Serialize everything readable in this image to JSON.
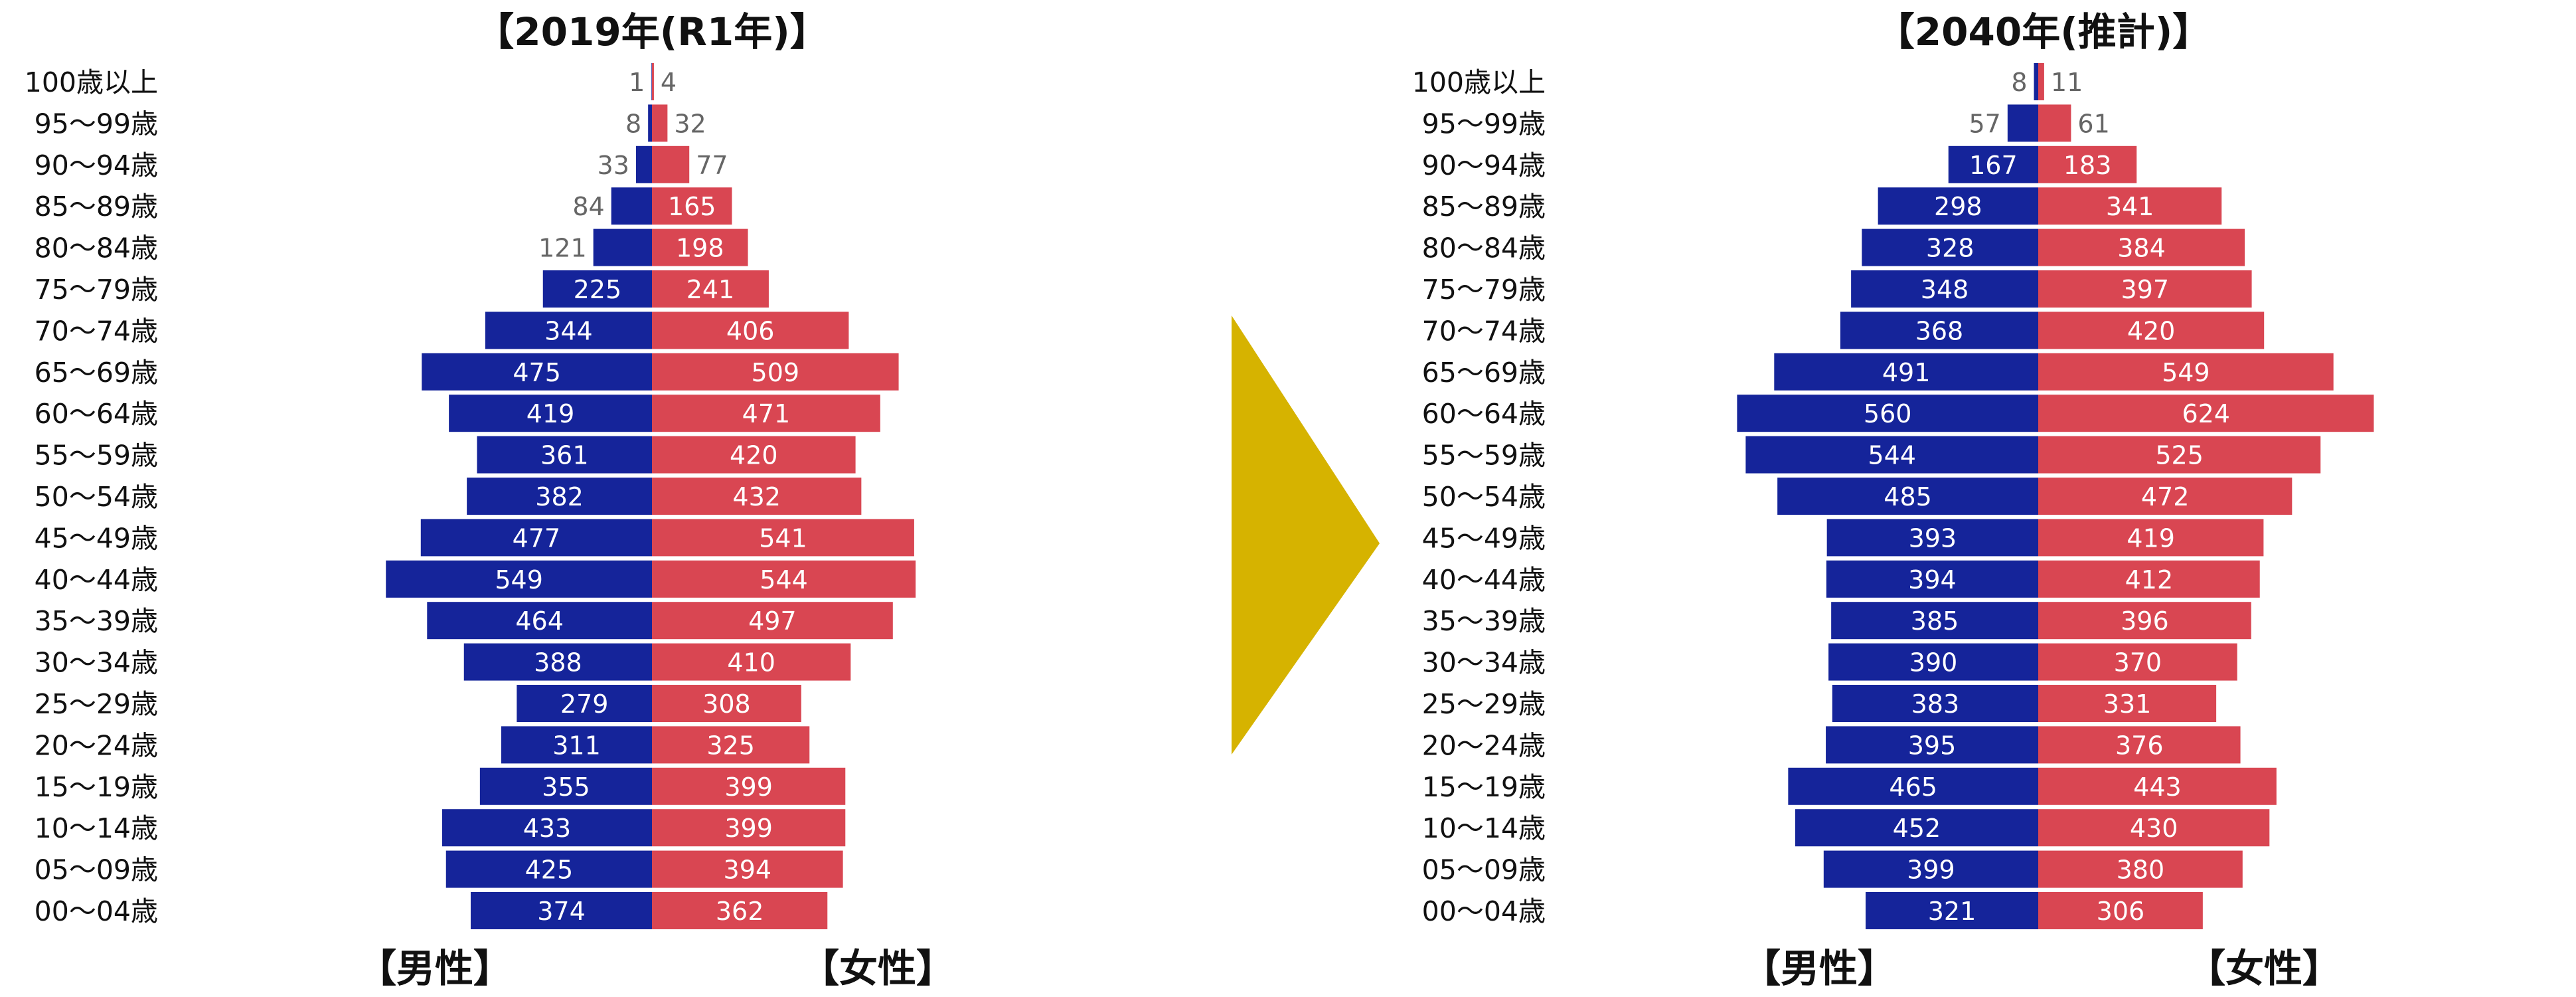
{
  "colors": {
    "male": "#15249a",
    "female": "#d94652",
    "arrow": "#d6b300",
    "label_inside": "#ffffff",
    "label_outside": "#666666",
    "text": "#111111"
  },
  "arrow": {
    "shape": "right-pointing-triangle"
  },
  "chart_data": [
    {
      "type": "bar",
      "subtype": "population-pyramid",
      "title": "【2019年(R1年)】",
      "male_label": "【男性】",
      "female_label": "【女性】",
      "categories": [
        "100歳以上",
        "95～99歳",
        "90～94歳",
        "85～89歳",
        "80～84歳",
        "75～79歳",
        "70～74歳",
        "65～69歳",
        "60～64歳",
        "55～59歳",
        "50～54歳",
        "45～49歳",
        "40～44歳",
        "35～39歳",
        "30～34歳",
        "25～29歳",
        "20～24歳",
        "15～19歳",
        "10～14歳",
        "05～09歳",
        "00～04歳"
      ],
      "series": [
        {
          "name": "【男性】",
          "values": [
            1,
            8,
            33,
            84,
            121,
            225,
            344,
            475,
            419,
            361,
            382,
            477,
            549,
            464,
            388,
            279,
            311,
            355,
            433,
            425,
            374
          ]
        },
        {
          "name": "【女性】",
          "values": [
            4,
            32,
            77,
            165,
            198,
            241,
            406,
            509,
            471,
            420,
            432,
            541,
            544,
            497,
            410,
            308,
            325,
            399,
            399,
            394,
            362
          ]
        }
      ],
      "grid": false
    },
    {
      "type": "bar",
      "subtype": "population-pyramid",
      "title": "【2040年(推計)】",
      "male_label": "【男性】",
      "female_label": "【女性】",
      "categories": [
        "100歳以上",
        "95～99歳",
        "90～94歳",
        "85～89歳",
        "80～84歳",
        "75～79歳",
        "70～74歳",
        "65～69歳",
        "60～64歳",
        "55～59歳",
        "50～54歳",
        "45～49歳",
        "40～44歳",
        "35～39歳",
        "30～34歳",
        "25～29歳",
        "20～24歳",
        "15～19歳",
        "10～14歳",
        "05～09歳",
        "00～04歳"
      ],
      "series": [
        {
          "name": "【男性】",
          "values": [
            8,
            57,
            167,
            298,
            328,
            348,
            368,
            491,
            560,
            544,
            485,
            393,
            394,
            385,
            390,
            383,
            395,
            465,
            452,
            399,
            321
          ]
        },
        {
          "name": "【女性】",
          "values": [
            11,
            61,
            183,
            341,
            384,
            397,
            420,
            549,
            624,
            525,
            472,
            419,
            412,
            396,
            370,
            331,
            376,
            443,
            430,
            380,
            306
          ]
        }
      ],
      "grid": false
    }
  ]
}
